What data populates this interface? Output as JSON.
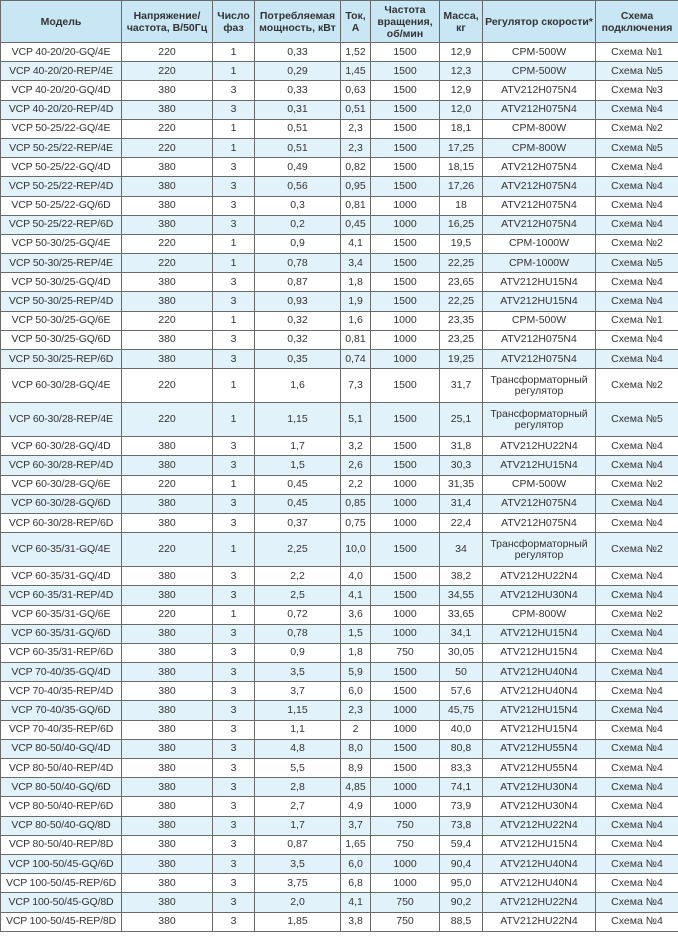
{
  "headers": [
    "Модель",
    "Напряжение/ частота, В/50Гц",
    "Число фаз",
    "Потребляемая мощность, кВт",
    "Ток, А",
    "Частота вращения, об/мин",
    "Масса, кг",
    "Регулятор скорости*",
    "Схема подключения"
  ],
  "colors": {
    "header_bg": "#c9e6f5",
    "stripe_bg": "#e2f2fb",
    "border": "#6a6a6a"
  },
  "rows": [
    [
      "VCP 40-20/20-GQ/4E",
      "220",
      "1",
      "0,33",
      "1,52",
      "1500",
      "12,9",
      "CPM-500W",
      "Схема №1"
    ],
    [
      "VCP 40-20/20-REP/4E",
      "220",
      "1",
      "0,29",
      "1,45",
      "1500",
      "12,3",
      "CPM-500W",
      "Схема №5"
    ],
    [
      "VCP 40-20/20-GQ/4D",
      "380",
      "3",
      "0,33",
      "0,63",
      "1500",
      "12,9",
      "ATV212H075N4",
      "Схема №3"
    ],
    [
      "VCP 40-20/20-REP/4D",
      "380",
      "3",
      "0,31",
      "0,51",
      "1500",
      "12,0",
      "ATV212H075N4",
      "Схема №4"
    ],
    [
      "VCP 50-25/22-GQ/4E",
      "220",
      "1",
      "0,51",
      "2,3",
      "1500",
      "18,1",
      "CPM-800W",
      "Схема №2"
    ],
    [
      "VCP 50-25/22-REP/4E",
      "220",
      "1",
      "0,51",
      "2,3",
      "1500",
      "17,25",
      "CPM-800W",
      "Схема №5"
    ],
    [
      "VCP 50-25/22-GQ/4D",
      "380",
      "3",
      "0,49",
      "0,82",
      "1500",
      "18,15",
      "ATV212H075N4",
      "Схема №4"
    ],
    [
      "VCP 50-25/22-REP/4D",
      "380",
      "3",
      "0,56",
      "0,95",
      "1500",
      "17,26",
      "ATV212H075N4",
      "Схема №4"
    ],
    [
      "VCP 50-25/22-GQ/6D",
      "380",
      "3",
      "0,3",
      "0,81",
      "1000",
      "18",
      "ATV212H075N4",
      "Схема №4"
    ],
    [
      "VCP 50-25/22-REP/6D",
      "380",
      "3",
      "0,2",
      "0,45",
      "1000",
      "16,25",
      "ATV212H075N4",
      "Схема №4"
    ],
    [
      "VCP 50-30/25-GQ/4E",
      "220",
      "1",
      "0,9",
      "4,1",
      "1500",
      "19,5",
      "CPM-1000W",
      "Схема №2"
    ],
    [
      "VCP 50-30/25-REP/4E",
      "220",
      "1",
      "0,78",
      "3,4",
      "1500",
      "22,25",
      "CPM-1000W",
      "Схема №5"
    ],
    [
      "VCP 50-30/25-GQ/4D",
      "380",
      "3",
      "0,87",
      "1,8",
      "1500",
      "23,65",
      "ATV212HU15N4",
      "Схема №4"
    ],
    [
      "VCP 50-30/25-REP/4D",
      "380",
      "3",
      "0,93",
      "1,9",
      "1500",
      "22,25",
      "ATV212HU15N4",
      "Схема №4"
    ],
    [
      "VCP 50-30/25-GQ/6E",
      "220",
      "1",
      "0,32",
      "1,6",
      "1000",
      "23,35",
      "CPM-500W",
      "Схема №1"
    ],
    [
      "VCP 50-30/25-GQ/6D",
      "380",
      "3",
      "0,32",
      "0,81",
      "1000",
      "23,25",
      "ATV212H075N4",
      "Схема №4"
    ],
    [
      "VCP 50-30/25-REP/6D",
      "380",
      "3",
      "0,35",
      "0,74",
      "1000",
      "19,25",
      "ATV212H075N4",
      "Схема №4"
    ],
    [
      "VCP 60-30/28-GQ/4E",
      "220",
      "1",
      "1,6",
      "7,3",
      "1500",
      "31,7",
      "Трансформаторный регулятор",
      "Схема №2"
    ],
    [
      "VCP 60-30/28-REP/4E",
      "220",
      "1",
      "1,15",
      "5,1",
      "1500",
      "25,1",
      "Трансформаторный регулятор",
      "Схема №5"
    ],
    [
      "VCP 60-30/28-GQ/4D",
      "380",
      "3",
      "1,7",
      "3,2",
      "1500",
      "31,8",
      "ATV212HU22N4",
      "Схема №4"
    ],
    [
      "VCP 60-30/28-REP/4D",
      "380",
      "3",
      "1,5",
      "2,6",
      "1500",
      "30,3",
      "ATV212HU15N4",
      "Схема №4"
    ],
    [
      "VCP 60-30/28-GQ/6E",
      "220",
      "1",
      "0,45",
      "2,2",
      "1000",
      "31,35",
      "CPM-500W",
      "Схема №2"
    ],
    [
      "VCP 60-30/28-GQ/6D",
      "380",
      "3",
      "0,45",
      "0,85",
      "1000",
      "31,4",
      "ATV212H075N4",
      "Схема №4"
    ],
    [
      "VCP 60-30/28-REP/6D",
      "380",
      "3",
      "0,37",
      "0,75",
      "1000",
      "22,4",
      "ATV212H075N4",
      "Схема №4"
    ],
    [
      "VCP 60-35/31-GQ/4E",
      "220",
      "1",
      "2,25",
      "10,0",
      "1500",
      "34",
      "Трансформаторный регулятор",
      "Схема №2"
    ],
    [
      "VCP 60-35/31-GQ/4D",
      "380",
      "3",
      "2,2",
      "4,0",
      "1500",
      "38,2",
      "ATV212HU22N4",
      "Схема №4"
    ],
    [
      "VCP 60-35/31-REP/4D",
      "380",
      "3",
      "2,5",
      "4,1",
      "1500",
      "34,55",
      "ATV212HU30N4",
      "Схема №4"
    ],
    [
      "VCP 60-35/31-GQ/6E",
      "220",
      "1",
      "0,72",
      "3,6",
      "1000",
      "33,65",
      "CPM-800W",
      "Схема №2"
    ],
    [
      "VCP 60-35/31-GQ/6D",
      "380",
      "3",
      "0,78",
      "1,5",
      "1000",
      "34,1",
      "ATV212HU15N4",
      "Схема №4"
    ],
    [
      "VCP 60-35/31-REP/6D",
      "380",
      "3",
      "0,9",
      "1,8",
      "750",
      "30,05",
      "ATV212HU15N4",
      "Схема №4"
    ],
    [
      "VCP 70-40/35-GQ/4D",
      "380",
      "3",
      "3,5",
      "5,9",
      "1500",
      "50",
      "ATV212HU40N4",
      "Схема №4"
    ],
    [
      "VCP 70-40/35-REP/4D",
      "380",
      "3",
      "3,7",
      "6,0",
      "1500",
      "57,6",
      "ATV212HU40N4",
      "Схема №4"
    ],
    [
      "VCP 70-40/35-GQ/6D",
      "380",
      "3",
      "1,15",
      "2,3",
      "1000",
      "45,75",
      "ATV212HU15N4",
      "Схема №4"
    ],
    [
      "VCP 70-40/35-REP/6D",
      "380",
      "3",
      "1,1",
      "2",
      "1000",
      "40,0",
      "ATV212HU15N4",
      "Схема №4"
    ],
    [
      "VCP 80-50/40-GQ/4D",
      "380",
      "3",
      "4,8",
      "8,0",
      "1500",
      "80,8",
      "ATV212HU55N4",
      "Схема №4"
    ],
    [
      "VCP 80-50/40-REP/4D",
      "380",
      "3",
      "5,5",
      "8,9",
      "1500",
      "83,3",
      "ATV212HU55N4",
      "Схема №4"
    ],
    [
      "VCP 80-50/40-GQ/6D",
      "380",
      "3",
      "2,8",
      "4,85",
      "1000",
      "74,1",
      "ATV212HU30N4",
      "Схема №4"
    ],
    [
      "VCP 80-50/40-REP/6D",
      "380",
      "3",
      "2,7",
      "4,9",
      "1000",
      "73,9",
      "ATV212HU30N4",
      "Схема №4"
    ],
    [
      "VCP 80-50/40-GQ/8D",
      "380",
      "3",
      "1,7",
      "3,7",
      "750",
      "73,8",
      "ATV212HU22N4",
      "Схема №4"
    ],
    [
      "VCP 80-50/40-REP/8D",
      "380",
      "3",
      "0,87",
      "1,65",
      "750",
      "59,4",
      "ATV212HU15N4",
      "Схема №4"
    ],
    [
      "VCP 100-50/45-GQ/6D",
      "380",
      "3",
      "3,5",
      "6,0",
      "1000",
      "90,4",
      "ATV212HU40N4",
      "Схема №4"
    ],
    [
      "VCP 100-50/45-REP/6D",
      "380",
      "3",
      "3,75",
      "6,8",
      "1000",
      "95,0",
      "ATV212HU40N4",
      "Схема №4"
    ],
    [
      "VCP 100-50/45-GQ/8D",
      "380",
      "3",
      "2,0",
      "4,1",
      "750",
      "90,2",
      "ATV212HU22N4",
      "Схема №4"
    ],
    [
      "VCP 100-50/45-REP/8D",
      "380",
      "3",
      "1,85",
      "3,8",
      "750",
      "88,5",
      "ATV212HU22N4",
      "Схема №4"
    ]
  ]
}
